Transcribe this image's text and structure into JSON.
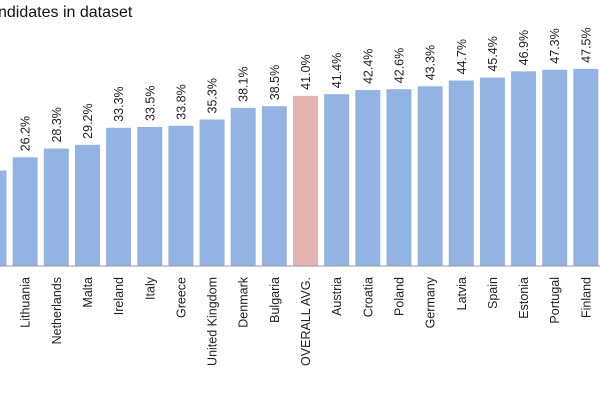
{
  "chart_data": {
    "type": "bar",
    "title": "ndidates in dataset",
    "categories": [
      "",
      "Lithuania",
      "Netherlands",
      "Malta",
      "Ireland",
      "Italy",
      "Greece",
      "United Kingdom",
      "Denmark",
      "Bulgaria",
      "OVERALL AVG.",
      "Austria",
      "Croatia",
      "Poland",
      "Germany",
      "Latvia",
      "Spain",
      "Estonia",
      "Portugal",
      "Finland"
    ],
    "values": [
      23.0,
      26.2,
      28.3,
      29.2,
      33.3,
      33.5,
      33.8,
      35.3,
      38.1,
      38.5,
      41.0,
      41.4,
      42.4,
      42.6,
      43.3,
      44.7,
      45.4,
      46.9,
      47.3,
      47.5
    ],
    "value_labels": [
      "",
      "26.2%",
      "28.3%",
      "29.2%",
      "33.3%",
      "33.5%",
      "33.8%",
      "35.3%",
      "38.1%",
      "38.5%",
      "41.0%",
      "41.4%",
      "42.4%",
      "42.6%",
      "43.3%",
      "44.7%",
      "45.4%",
      "46.9%",
      "47.3%",
      "47.5%"
    ],
    "highlight_category": "OVERALL AVG.",
    "colors": {
      "bar": "#93b4e2",
      "highlight": "#e3b4b2",
      "axis": "#9a9a9a"
    },
    "xlabel": "",
    "ylabel": "",
    "ylim": [
      0,
      50
    ],
    "grid": false,
    "legend": "none"
  }
}
